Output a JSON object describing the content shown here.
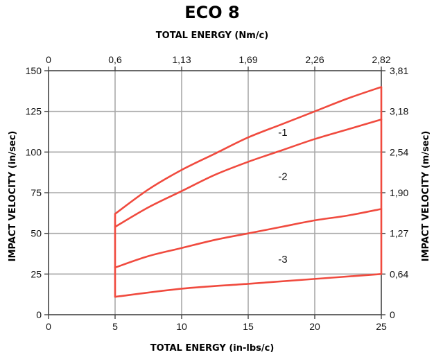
{
  "chart_data": {
    "type": "line",
    "title": "ECO 8",
    "xlabel": "TOTAL ENERGY (in-lbs/c)",
    "ylabel": "IMPACT VELOCITY (in/sec)",
    "x2label": "TOTAL ENERGY (Nm/c)",
    "y2label": "IMPACT VELOCITY (m/sec)",
    "xlim": [
      0,
      25
    ],
    "ylim": [
      0,
      150
    ],
    "x_ticks": [
      0,
      5,
      10,
      15,
      20,
      25
    ],
    "x_tick_labels": [
      "0",
      "5",
      "10",
      "15",
      "20",
      "25"
    ],
    "y_ticks": [
      0,
      25,
      50,
      75,
      100,
      125,
      150
    ],
    "y_tick_labels": [
      "0",
      "25",
      "50",
      "75",
      "100",
      "125",
      "150"
    ],
    "x2_ticks": [
      0,
      5,
      10,
      15,
      20,
      25
    ],
    "x2_tick_labels": [
      "0",
      "0,6",
      "1,13",
      "1,69",
      "2,26",
      "2,82"
    ],
    "y2_ticks": [
      0,
      25,
      50,
      75,
      100,
      125,
      150
    ],
    "y2_tick_labels": [
      "0",
      "0,64",
      "1,27",
      "1,90",
      "2,54",
      "3,18",
      "3,81"
    ],
    "grid": true,
    "line_color": "#f04a3e",
    "grid_color": "#a8a8a8",
    "series": [
      {
        "name": "-1",
        "x": [
          5,
          7.5,
          10,
          12.5,
          15,
          17.5,
          20,
          22.5,
          25
        ],
        "values": [
          62,
          77,
          89,
          99,
          109,
          117,
          125,
          133,
          140
        ],
        "label_at": [
          17.6,
          112
        ]
      },
      {
        "name": "-2",
        "x": [
          5,
          7.5,
          10,
          12.5,
          15,
          17.5,
          20,
          22.5,
          25
        ],
        "values": [
          54,
          66,
          76,
          86,
          94,
          101,
          108,
          114,
          120
        ],
        "label_at": [
          17.6,
          85
        ]
      },
      {
        "name": "-3",
        "x": [
          5,
          7.5,
          10,
          12.5,
          15,
          17.5,
          20,
          22.5,
          25
        ],
        "values": [
          29,
          36,
          41,
          46,
          50,
          54,
          58,
          61,
          65
        ],
        "label_at": [
          17.6,
          34
        ]
      },
      {
        "name": "",
        "x": [
          5,
          10,
          15,
          20,
          25
        ],
        "values": [
          11,
          16,
          19,
          22,
          25
        ]
      }
    ],
    "boundaries": [
      {
        "x": [
          5,
          5
        ],
        "values": [
          11,
          62
        ]
      },
      {
        "x": [
          25,
          25
        ],
        "values": [
          25,
          140
        ]
      }
    ]
  }
}
